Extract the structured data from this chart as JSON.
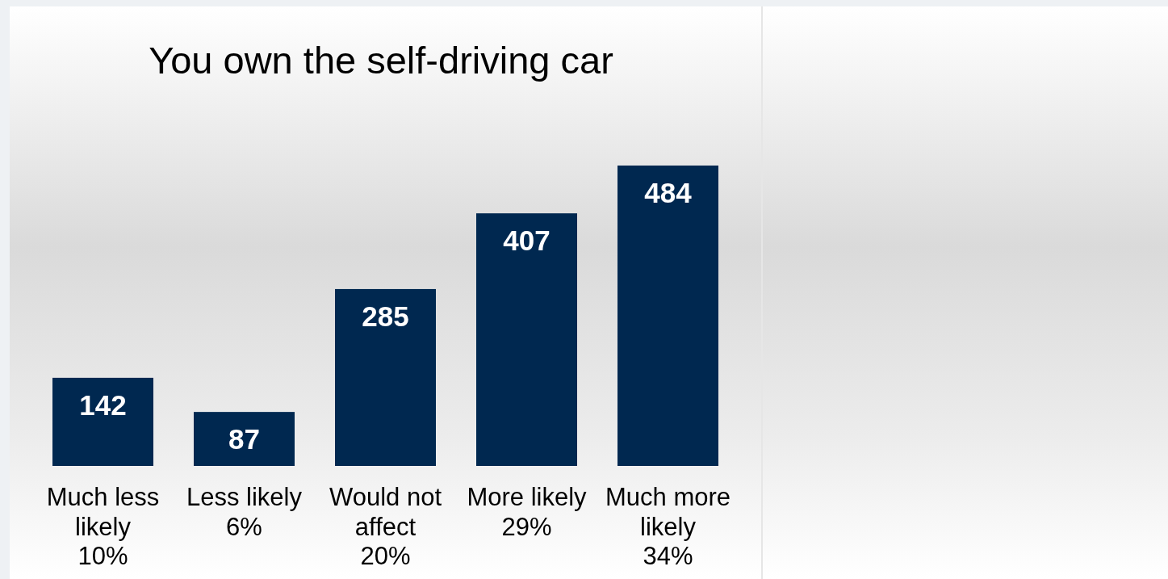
{
  "chart_data": {
    "type": "bar",
    "title": "You own the self-driving car",
    "categories": [
      "Much less likely\n10%",
      "Less likely\n6%",
      "Would not affect\n20%",
      "More likely\n29%",
      "Much more likely\n34%"
    ],
    "values": [
      142,
      87,
      285,
      407,
      484
    ],
    "color": "#002850",
    "data_labels": true
  }
}
